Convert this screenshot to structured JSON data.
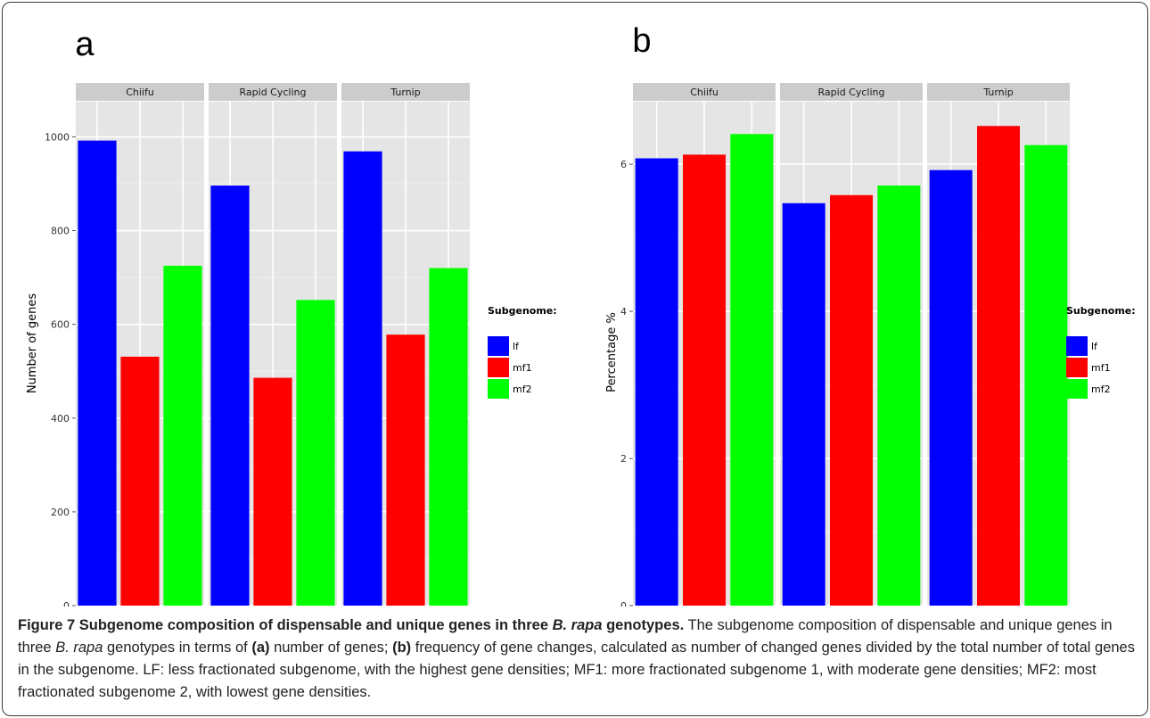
{
  "chart_data": [
    {
      "type": "bar",
      "panel_label": "a",
      "facets": [
        "Chiifu",
        "Rapid Cycling",
        "Turnip"
      ],
      "categories": [
        "lf",
        "mf1",
        "mf2"
      ],
      "series": [
        {
          "name": "lf",
          "color": "#0000ff",
          "values": [
            992,
            896,
            969
          ]
        },
        {
          "name": "mf1",
          "color": "#ff0000",
          "values": [
            531,
            486,
            578
          ]
        },
        {
          "name": "mf2",
          "color": "#00ff00",
          "values": [
            725,
            652,
            720
          ]
        }
      ],
      "ylabel": "Number of genes",
      "ylim": [
        0,
        1075
      ],
      "yticks": [
        0,
        200,
        400,
        600,
        800,
        1000
      ],
      "ytick_labels": [
        "0",
        "200",
        "400",
        "600",
        "800",
        "1000"
      ],
      "legend_title": "Subgenome:",
      "legend_placement": "right",
      "grid": true
    },
    {
      "type": "bar",
      "panel_label": "b",
      "facets": [
        "Chiifu",
        "Rapid Cycling",
        "Turnip"
      ],
      "categories": [
        "lf",
        "mf1",
        "mf2"
      ],
      "series": [
        {
          "name": "lf",
          "color": "#0000ff",
          "values": [
            6.08,
            5.47,
            5.92
          ]
        },
        {
          "name": "mf1",
          "color": "#ff0000",
          "values": [
            6.13,
            5.58,
            6.52
          ]
        },
        {
          "name": "mf2",
          "color": "#00ff00",
          "values": [
            6.41,
            5.71,
            6.26
          ]
        }
      ],
      "ylabel": "Percentage %",
      "ylim": [
        0,
        6.85
      ],
      "yticks": [
        0,
        2,
        4,
        6
      ],
      "ytick_labels": [
        "0",
        "2",
        "4",
        "6"
      ],
      "legend_title": "Subgenome:",
      "legend_placement": "right",
      "grid": true
    }
  ],
  "caption": {
    "title_start": "Figure 7 Subgenome composition of dispensable and unique genes in three ",
    "title_species": "B. rapa",
    "title_end": " genotypes.",
    "body_1": " The subgenome composition of dispensable and unique genes in three ",
    "body_species": "B. rapa",
    "body_2": " genotypes in terms of ",
    "label_a": "(a)",
    "body_3": " number of genes; ",
    "label_b": "(b)",
    "body_4": " frequency of gene changes, calculated as number of changed genes divided by the total number of total genes in the subgenome. LF: less fractionated subgenome, with the highest gene densities; MF1: more fractionated subgenome 1, with moderate gene densities; MF2: most fractionated subgenome 2, with lowest gene densities."
  }
}
